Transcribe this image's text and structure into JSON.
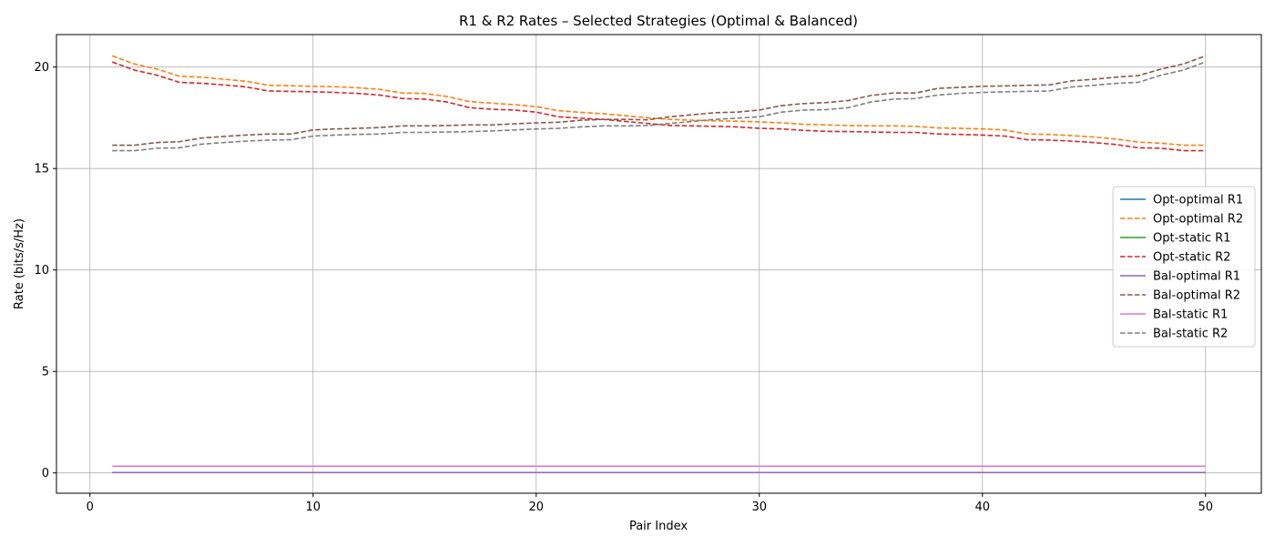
{
  "chart_data": {
    "type": "line",
    "title": "R1 & R2 Rates – Selected Strategies (Optimal & Balanced)",
    "xlabel": "Pair Index",
    "ylabel": "Rate (bits/s/Hz)",
    "xlim": [
      -1.5,
      52.5
    ],
    "ylim": [
      -1.0,
      21.6
    ],
    "xticks": [
      0,
      10,
      20,
      30,
      40,
      50
    ],
    "yticks": [
      0,
      5,
      10,
      15,
      20
    ],
    "grid": true,
    "legend_position": "right",
    "x": [
      1,
      2,
      3,
      4,
      5,
      6,
      7,
      8,
      9,
      10,
      11,
      12,
      13,
      14,
      15,
      16,
      17,
      18,
      19,
      20,
      21,
      22,
      23,
      24,
      25,
      26,
      27,
      28,
      29,
      30,
      31,
      32,
      33,
      34,
      35,
      36,
      37,
      38,
      39,
      40,
      41,
      42,
      43,
      44,
      45,
      46,
      47,
      48,
      49,
      50
    ],
    "series": [
      {
        "name": "Opt-optimal R1",
        "color": "#1f77b4",
        "dash": "solid",
        "values": [
          0.02,
          0.02,
          0.02,
          0.02,
          0.02,
          0.02,
          0.02,
          0.02,
          0.02,
          0.02,
          0.02,
          0.02,
          0.02,
          0.02,
          0.02,
          0.02,
          0.02,
          0.02,
          0.02,
          0.02,
          0.02,
          0.02,
          0.02,
          0.02,
          0.02,
          0.02,
          0.02,
          0.02,
          0.02,
          0.02,
          0.02,
          0.02,
          0.02,
          0.02,
          0.02,
          0.02,
          0.02,
          0.02,
          0.02,
          0.02,
          0.02,
          0.02,
          0.02,
          0.02,
          0.02,
          0.02,
          0.02,
          0.02,
          0.02,
          0.02
        ]
      },
      {
        "name": "Opt-optimal R2",
        "color": "#ff7f0e",
        "dash": "dashed",
        "values": [
          20.55,
          20.15,
          19.9,
          19.55,
          19.5,
          19.4,
          19.3,
          19.1,
          19.08,
          19.05,
          19.03,
          18.98,
          18.9,
          18.72,
          18.7,
          18.55,
          18.3,
          18.22,
          18.15,
          18.05,
          17.85,
          17.77,
          17.7,
          17.6,
          17.5,
          17.42,
          17.38,
          17.35,
          17.33,
          17.3,
          17.25,
          17.18,
          17.15,
          17.12,
          17.1,
          17.1,
          17.08,
          17.0,
          16.98,
          16.95,
          16.9,
          16.7,
          16.68,
          16.62,
          16.55,
          16.45,
          16.3,
          16.25,
          16.15,
          16.15
        ]
      },
      {
        "name": "Opt-static R1",
        "color": "#2ca02c",
        "dash": "solid",
        "values": [
          0.02,
          0.02,
          0.02,
          0.02,
          0.02,
          0.02,
          0.02,
          0.02,
          0.02,
          0.02,
          0.02,
          0.02,
          0.02,
          0.02,
          0.02,
          0.02,
          0.02,
          0.02,
          0.02,
          0.02,
          0.02,
          0.02,
          0.02,
          0.02,
          0.02,
          0.02,
          0.02,
          0.02,
          0.02,
          0.02,
          0.02,
          0.02,
          0.02,
          0.02,
          0.02,
          0.02,
          0.02,
          0.02,
          0.02,
          0.02,
          0.02,
          0.02,
          0.02,
          0.02,
          0.02,
          0.02,
          0.02,
          0.02,
          0.02,
          0.02
        ]
      },
      {
        "name": "Opt-static R2",
        "color": "#d62728",
        "dash": "dashed",
        "values": [
          20.25,
          19.85,
          19.6,
          19.25,
          19.2,
          19.12,
          19.02,
          18.82,
          18.8,
          18.78,
          18.75,
          18.7,
          18.62,
          18.45,
          18.42,
          18.28,
          18.0,
          17.92,
          17.88,
          17.78,
          17.55,
          17.48,
          17.42,
          17.32,
          17.22,
          17.12,
          17.1,
          17.08,
          17.05,
          16.98,
          16.95,
          16.88,
          16.83,
          16.82,
          16.8,
          16.78,
          16.78,
          16.7,
          16.68,
          16.65,
          16.6,
          16.42,
          16.4,
          16.35,
          16.28,
          16.18,
          16.02,
          16.0,
          15.88,
          15.88
        ]
      },
      {
        "name": "Bal-optimal R1",
        "color": "#9467bd",
        "dash": "solid",
        "values": [
          0.02,
          0.02,
          0.02,
          0.02,
          0.02,
          0.02,
          0.02,
          0.02,
          0.02,
          0.02,
          0.02,
          0.02,
          0.02,
          0.02,
          0.02,
          0.02,
          0.02,
          0.02,
          0.02,
          0.02,
          0.02,
          0.02,
          0.02,
          0.02,
          0.02,
          0.02,
          0.02,
          0.02,
          0.02,
          0.02,
          0.02,
          0.02,
          0.02,
          0.02,
          0.02,
          0.02,
          0.02,
          0.02,
          0.02,
          0.02,
          0.02,
          0.02,
          0.02,
          0.02,
          0.02,
          0.02,
          0.02,
          0.02,
          0.02,
          0.02
        ]
      },
      {
        "name": "Bal-optimal R2",
        "color": "#8c564b",
        "dash": "dashed",
        "values": [
          16.15,
          16.15,
          16.28,
          16.32,
          16.5,
          16.58,
          16.65,
          16.7,
          16.7,
          16.9,
          16.95,
          16.98,
          17.02,
          17.1,
          17.1,
          17.12,
          17.15,
          17.15,
          17.2,
          17.25,
          17.28,
          17.38,
          17.42,
          17.42,
          17.4,
          17.55,
          17.65,
          17.75,
          17.78,
          17.88,
          18.1,
          18.2,
          18.25,
          18.35,
          18.6,
          18.72,
          18.72,
          18.95,
          19.0,
          19.05,
          19.07,
          19.1,
          19.12,
          19.32,
          19.4,
          19.5,
          19.58,
          19.9,
          20.15,
          20.55
        ]
      },
      {
        "name": "Bal-static R1",
        "color": "#e377c2",
        "dash": "solid",
        "values": [
          0.33,
          0.33,
          0.33,
          0.33,
          0.33,
          0.33,
          0.33,
          0.33,
          0.33,
          0.33,
          0.33,
          0.33,
          0.33,
          0.33,
          0.33,
          0.33,
          0.33,
          0.33,
          0.33,
          0.33,
          0.33,
          0.33,
          0.33,
          0.33,
          0.33,
          0.33,
          0.33,
          0.33,
          0.33,
          0.33,
          0.33,
          0.33,
          0.33,
          0.33,
          0.33,
          0.33,
          0.33,
          0.33,
          0.33,
          0.33,
          0.33,
          0.33,
          0.33,
          0.33,
          0.33,
          0.33,
          0.33,
          0.33,
          0.33,
          0.33
        ]
      },
      {
        "name": "Bal-static R2",
        "color": "#7f7f7f",
        "dash": "dashed",
        "values": [
          15.88,
          15.88,
          16.0,
          16.02,
          16.2,
          16.28,
          16.35,
          16.4,
          16.42,
          16.6,
          16.65,
          16.68,
          16.7,
          16.78,
          16.78,
          16.8,
          16.82,
          16.85,
          16.9,
          16.95,
          16.98,
          17.05,
          17.1,
          17.1,
          17.12,
          17.22,
          17.32,
          17.42,
          17.48,
          17.55,
          17.78,
          17.88,
          17.9,
          18.0,
          18.28,
          18.42,
          18.45,
          18.62,
          18.7,
          18.75,
          18.78,
          18.8,
          18.82,
          19.02,
          19.1,
          19.2,
          19.25,
          19.6,
          19.85,
          20.25
        ]
      }
    ]
  }
}
